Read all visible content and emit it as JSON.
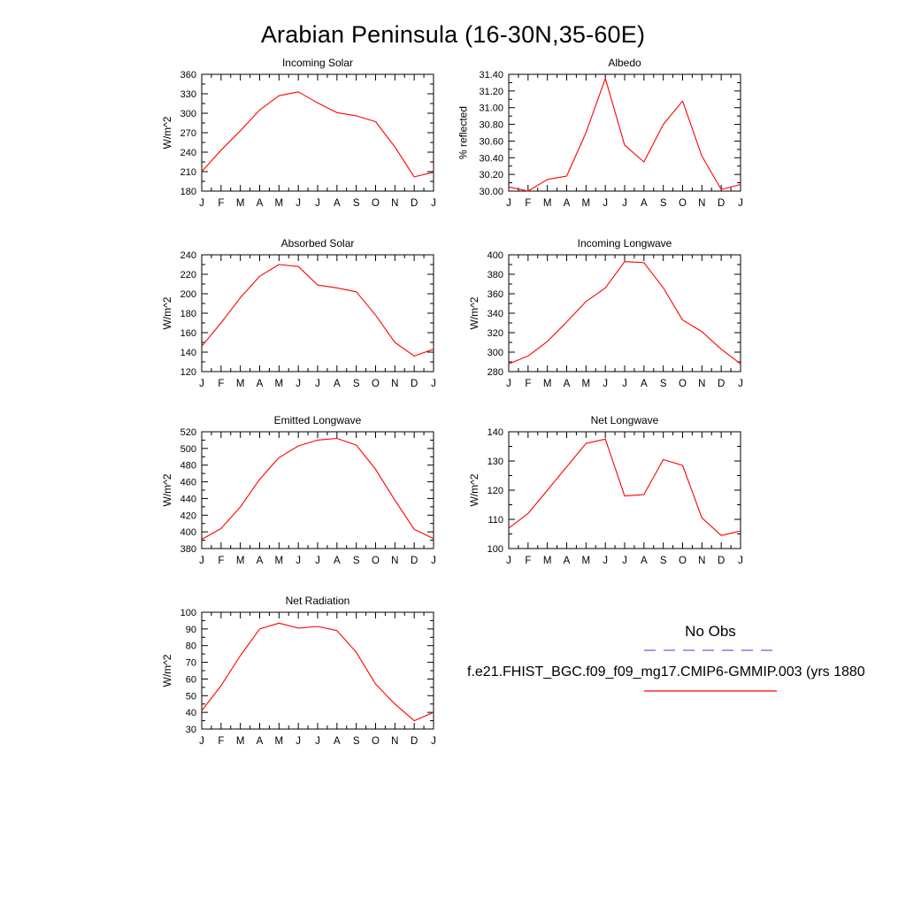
{
  "page": {
    "title": "Arabian Peninsula (16-30N,35-60E)"
  },
  "months": [
    "J",
    "F",
    "M",
    "A",
    "M",
    "J",
    "J",
    "A",
    "S",
    "O",
    "N",
    "D",
    "J"
  ],
  "colors": {
    "series_line": "#ff0000",
    "no_obs_line": "#6666cc",
    "axis": "#000000"
  },
  "legend": {
    "no_obs_label": "No Obs",
    "model_label": "f.e21.FHIST_BGC.f09_f09_mg17.CMIP6-GMMIP.003 (yrs 1880"
  },
  "chart_data": [
    {
      "key": "incoming_solar",
      "type": "line",
      "title": "Incoming Solar",
      "ylabel": "W/m^2",
      "xlabel": "",
      "categories": [
        "J",
        "F",
        "M",
        "A",
        "M",
        "J",
        "J",
        "A",
        "S",
        "O",
        "N",
        "D",
        "J"
      ],
      "ylim": [
        180,
        360
      ],
      "yticks": [
        180,
        210,
        240,
        270,
        300,
        330,
        360
      ],
      "decimals": 0,
      "values": [
        210,
        243,
        273,
        305,
        327,
        333,
        316,
        301,
        296,
        287,
        248,
        202,
        209
      ]
    },
    {
      "key": "albedo",
      "type": "line",
      "title": "Albedo",
      "ylabel": "% reflected",
      "xlabel": "",
      "categories": [
        "J",
        "F",
        "M",
        "A",
        "M",
        "J",
        "J",
        "A",
        "S",
        "O",
        "N",
        "D",
        "J"
      ],
      "ylim": [
        30.0,
        31.4
      ],
      "yticks": [
        30.0,
        30.2,
        30.4,
        30.6,
        30.8,
        31.0,
        31.2,
        31.4
      ],
      "decimals": 2,
      "values": [
        30.05,
        30.0,
        30.14,
        30.18,
        30.7,
        31.35,
        30.55,
        30.35,
        30.8,
        31.08,
        30.42,
        30.02,
        30.08
      ]
    },
    {
      "key": "absorbed_solar",
      "type": "line",
      "title": "Absorbed Solar",
      "ylabel": "W/m^2",
      "xlabel": "",
      "categories": [
        "J",
        "F",
        "M",
        "A",
        "M",
        "J",
        "J",
        "A",
        "S",
        "O",
        "N",
        "D",
        "J"
      ],
      "ylim": [
        120,
        240
      ],
      "yticks": [
        120,
        140,
        160,
        180,
        200,
        220,
        240
      ],
      "decimals": 0,
      "values": [
        146,
        170,
        196,
        218,
        230,
        228,
        209,
        206,
        202,
        178,
        150,
        136,
        143
      ]
    },
    {
      "key": "incoming_longwave",
      "type": "line",
      "title": "Incoming Longwave",
      "ylabel": "W/m^2",
      "xlabel": "",
      "categories": [
        "J",
        "F",
        "M",
        "A",
        "M",
        "J",
        "J",
        "A",
        "S",
        "O",
        "N",
        "D",
        "J"
      ],
      "ylim": [
        280,
        400
      ],
      "yticks": [
        280,
        300,
        320,
        340,
        360,
        380,
        400
      ],
      "decimals": 0,
      "values": [
        288,
        296,
        311,
        331,
        352,
        366,
        393,
        392,
        366,
        333,
        321,
        303,
        288
      ]
    },
    {
      "key": "emitted_longwave",
      "type": "line",
      "title": "Emitted Longwave",
      "ylabel": "W/m^2",
      "xlabel": "",
      "categories": [
        "J",
        "F",
        "M",
        "A",
        "M",
        "J",
        "J",
        "A",
        "S",
        "O",
        "N",
        "D",
        "J"
      ],
      "ylim": [
        380,
        520
      ],
      "yticks": [
        380,
        400,
        420,
        440,
        460,
        480,
        500,
        520
      ],
      "decimals": 0,
      "values": [
        391,
        404,
        430,
        463,
        489,
        503,
        510,
        512,
        504,
        475,
        438,
        403,
        392
      ]
    },
    {
      "key": "net_longwave",
      "type": "line",
      "title": "Net Longwave",
      "ylabel": "W/m^2",
      "xlabel": "",
      "categories": [
        "J",
        "F",
        "M",
        "A",
        "M",
        "J",
        "J",
        "A",
        "S",
        "O",
        "N",
        "D",
        "J"
      ],
      "ylim": [
        100,
        140
      ],
      "yticks": [
        100,
        110,
        120,
        130,
        140
      ],
      "decimals": 0,
      "values": [
        107,
        112,
        120,
        128,
        136,
        137.5,
        118,
        118.5,
        130.5,
        128.5,
        110.5,
        104.5,
        106
      ]
    },
    {
      "key": "net_radiation",
      "type": "line",
      "title": "Net Radiation",
      "ylabel": "W/m^2",
      "xlabel": "",
      "categories": [
        "J",
        "F",
        "M",
        "A",
        "M",
        "J",
        "J",
        "A",
        "S",
        "O",
        "N",
        "D",
        "J"
      ],
      "ylim": [
        30,
        100
      ],
      "yticks": [
        30,
        40,
        50,
        60,
        70,
        80,
        90,
        100
      ],
      "decimals": 0,
      "values": [
        41,
        56,
        74,
        90,
        93.5,
        90.5,
        91.5,
        89,
        76,
        57,
        45,
        35,
        40
      ]
    }
  ]
}
